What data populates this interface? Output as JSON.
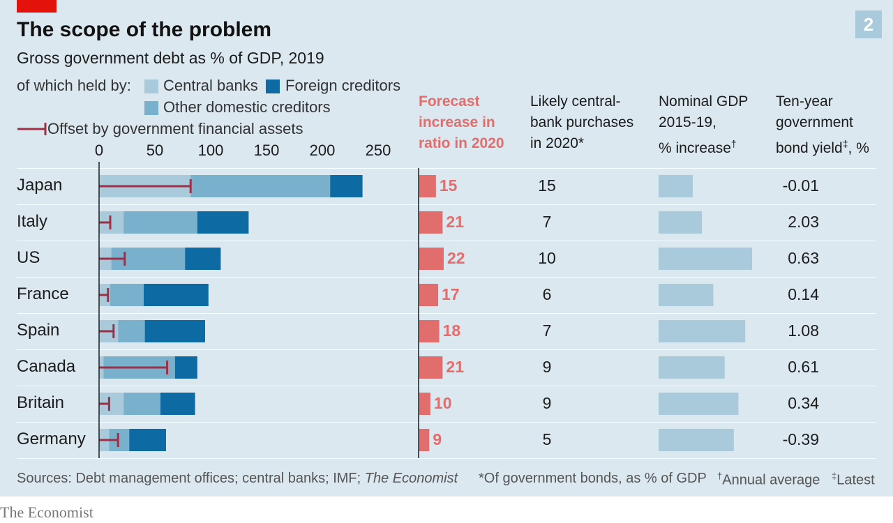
{
  "header": {
    "title": "The scope of the problem",
    "subtitle": "Gross government debt as % of GDP, 2019",
    "badge": "2"
  },
  "legend": {
    "held_by_label": "of which held by:",
    "central_banks": "Central banks",
    "foreign_creditors": "Foreign creditors",
    "other_domestic": "Other domestic creditors",
    "offset": "Offset by government financial assets"
  },
  "columns": {
    "forecast": "Forecast increase in ratio in 2020",
    "purchases": "Likely central-bank purchases in 2020*",
    "gdp_line1": "Nominal GDP 2015-19,",
    "gdp_line2": "% increase",
    "gdp_mark": "†",
    "yield_line1": "Ten-year government",
    "yield_line2": "bond yield",
    "yield_mark": "‡",
    "yield_line2_end": ", %"
  },
  "footer": {
    "sources_prefix": "Sources: Debt management offices; central banks; IMF; ",
    "sources_italic": "The Economist",
    "note1": "*Of government bonds, as % of GDP",
    "note2_mark": "†",
    "note2": "Annual average",
    "note3_mark": "‡",
    "note3": "Latest"
  },
  "brand": "The Economist",
  "colors": {
    "central_banks": "#a8cadb",
    "other_domestic": "#79b1cc",
    "foreign": "#0e6aa3",
    "offset": "#9e2f46",
    "forecast": "#e26d6d",
    "gdp": "#a8cadb",
    "accent_red": "#e3120b",
    "badge": "#a8cadb"
  },
  "chart_data": [
    {
      "type": "bar",
      "stacked": true,
      "title": "Gross government debt as % of GDP, 2019",
      "categories": [
        "Japan",
        "Italy",
        "US",
        "France",
        "Spain",
        "Canada",
        "Britain",
        "Germany"
      ],
      "xlim": [
        0,
        250
      ],
      "xticks": [
        "0",
        "50",
        "100",
        "150",
        "200",
        "250"
      ],
      "series": [
        {
          "name": "Central banks",
          "values": [
            82,
            22,
            11,
            10,
            17,
            4,
            22,
            9
          ]
        },
        {
          "name": "Other domestic creditors",
          "values": [
            125,
            66,
            66,
            30,
            24,
            64,
            33,
            18
          ]
        },
        {
          "name": "Foreign creditors",
          "values": [
            29,
            46,
            32,
            58,
            54,
            20,
            31,
            33
          ]
        }
      ],
      "offset": {
        "name": "Offset by government financial assets",
        "values": [
          82,
          10,
          23,
          8,
          13,
          61,
          9,
          17
        ]
      }
    },
    {
      "type": "bar",
      "title": "Forecast increase in ratio in 2020",
      "categories": [
        "Japan",
        "Italy",
        "US",
        "France",
        "Spain",
        "Canada",
        "Britain",
        "Germany"
      ],
      "values": [
        15,
        21,
        22,
        17,
        18,
        21,
        10,
        9
      ]
    },
    {
      "type": "table",
      "title": "Likely central-bank purchases in 2020*",
      "categories": [
        "Japan",
        "Italy",
        "US",
        "France",
        "Spain",
        "Canada",
        "Britain",
        "Germany"
      ],
      "values": [
        15,
        7,
        10,
        6,
        7,
        9,
        9,
        5
      ]
    },
    {
      "type": "bar",
      "title": "Nominal GDP 2015-19, % increase†",
      "categories": [
        "Japan",
        "Italy",
        "US",
        "France",
        "Spain",
        "Canada",
        "Britain",
        "Germany"
      ],
      "values": [
        "1.5",
        "1.9",
        "4.1",
        "2.4",
        "3.8",
        "2.9",
        "3.5",
        "3.3"
      ]
    },
    {
      "type": "table",
      "title": "Ten-year government bond yield‡, %",
      "categories": [
        "Japan",
        "Italy",
        "US",
        "France",
        "Spain",
        "Canada",
        "Britain",
        "Germany"
      ],
      "values": [
        "-0.01",
        "2.03",
        "0.63",
        "0.14",
        "1.08",
        "0.61",
        "0.34",
        "-0.39"
      ]
    }
  ]
}
